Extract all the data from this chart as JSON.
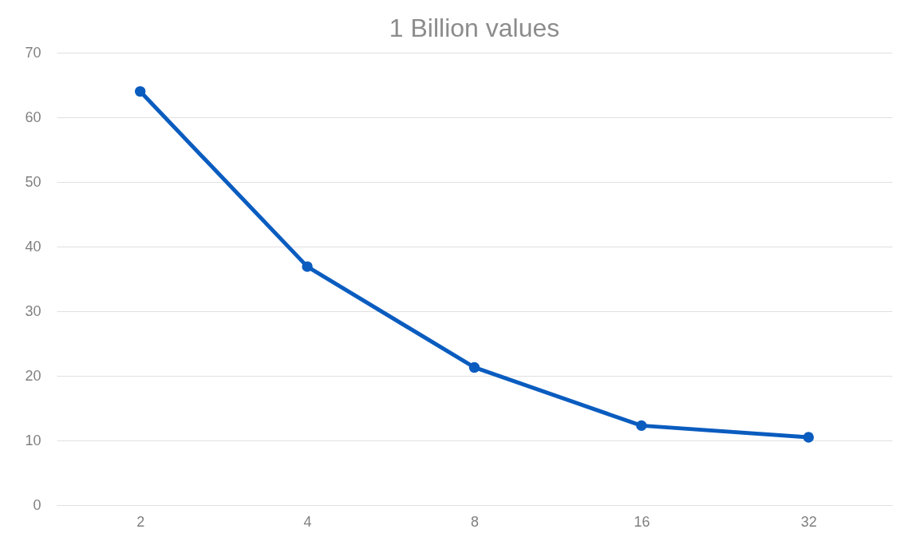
{
  "chart_data": {
    "type": "line",
    "title": "1 Billion values",
    "categories": [
      "2",
      "4",
      "8",
      "16",
      "32"
    ],
    "series": [
      {
        "color": "#0a5cbf",
        "values": [
          64,
          36.9,
          21.3,
          12.3,
          10.5
        ]
      }
    ],
    "ylim": [
      0,
      70
    ],
    "yticks": [
      0,
      10,
      20,
      30,
      40,
      50,
      60,
      70
    ],
    "grid": "y",
    "marker": "circle",
    "line_style": "solid",
    "legend": false
  }
}
